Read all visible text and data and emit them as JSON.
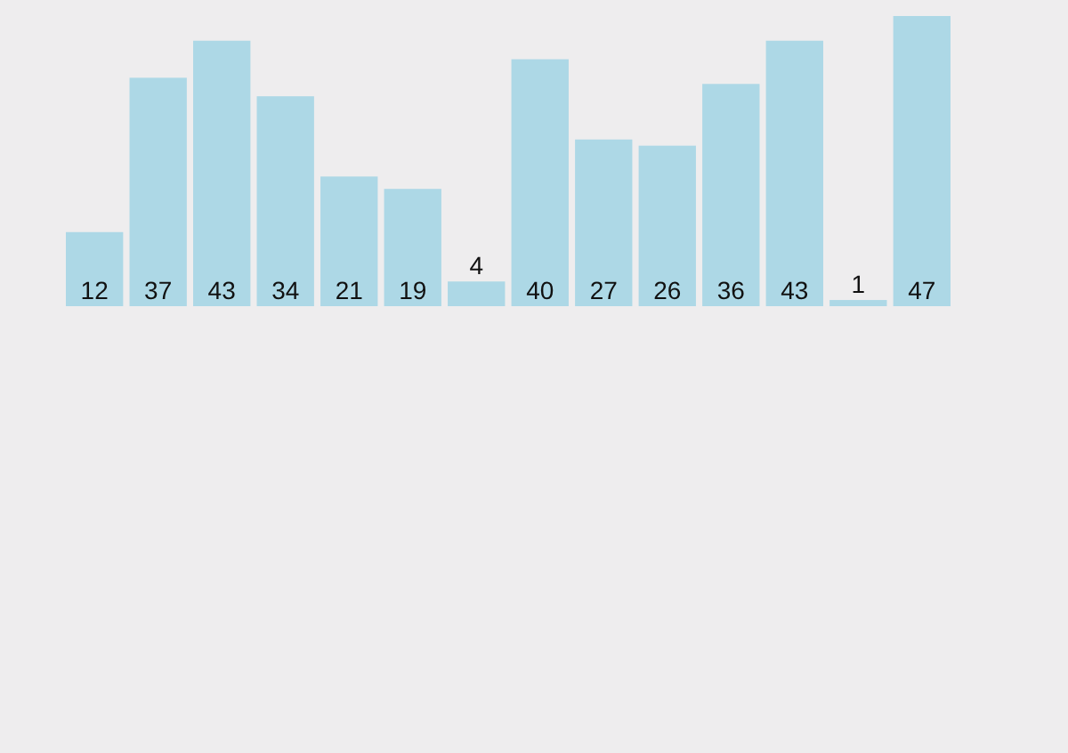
{
  "chart_data": {
    "type": "bar",
    "categories": [
      null,
      null,
      null,
      null,
      null,
      null,
      null,
      null,
      null,
      null,
      null,
      null,
      null,
      null
    ],
    "values": [
      12,
      37,
      43,
      34,
      21,
      19,
      4,
      40,
      27,
      26,
      36,
      43,
      1,
      47
    ],
    "color": "#add8e6",
    "data_labels": true
  }
}
